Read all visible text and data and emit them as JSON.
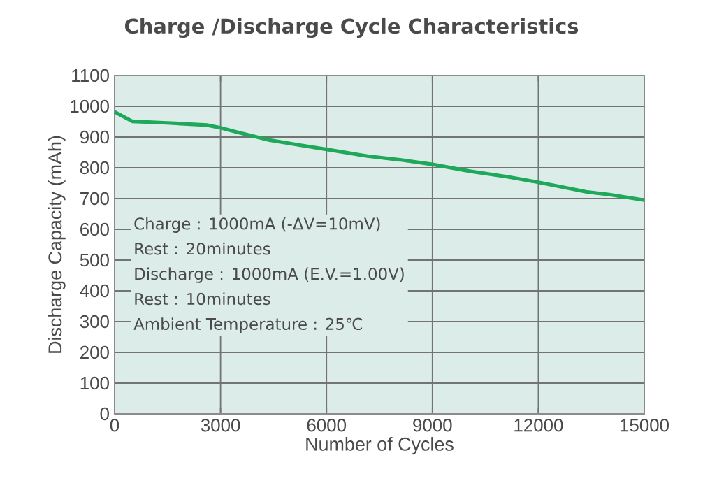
{
  "chart_data": {
    "type": "line",
    "title": "Charge /Discharge Cycle Characteristics",
    "xlabel": "Number of Cycles",
    "ylabel": "Discharge Capacity (mAh)",
    "series": [
      {
        "color": "#1ea85a",
        "x": [
          0,
          500,
          1490,
          2610,
          3000,
          3470,
          4390,
          5180,
          6000,
          7160,
          8080,
          9000,
          10060,
          11110,
          12000,
          13350,
          14010,
          15000
        ],
        "values": [
          982,
          951,
          946,
          939,
          930,
          916,
          890,
          875,
          860,
          838,
          826,
          811,
          789,
          771,
          753,
          722,
          713,
          695
        ]
      }
    ],
    "xlim": [
      0,
      15000
    ],
    "ylim": [
      0,
      1100
    ],
    "xticks": [
      0,
      3000,
      6000,
      9000,
      12000,
      15000
    ],
    "yticks": [
      0,
      100,
      200,
      300,
      400,
      500,
      600,
      700,
      800,
      900,
      1000,
      1100
    ],
    "grid": true,
    "marker": "none",
    "line_style": "solid",
    "annotations": [
      "Charge : 1000mA (-ΔV=10mV)",
      "Rest : 20minutes",
      "Discharge : 1000mA (E.V.=1.00V)",
      "Rest : 10minutes",
      "Ambient Temperature : 25℃"
    ]
  }
}
